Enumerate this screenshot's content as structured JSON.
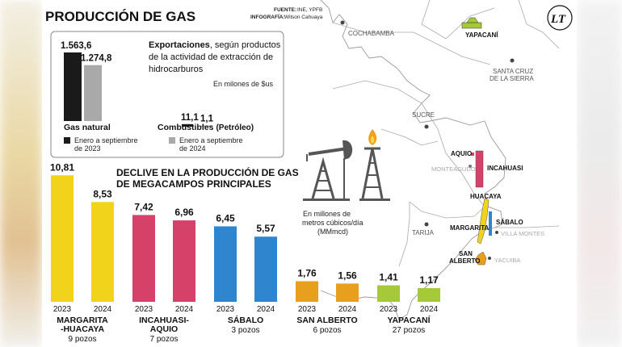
{
  "header": {
    "title": "PRODUCCIÓN DE GAS",
    "source_label": "FUENTE:",
    "source_value": "INE, YPFB",
    "credit_label": "INFOGRAFÍA:",
    "credit_value": "Wilson Cahuaya",
    "logo_text": "LT"
  },
  "exports": {
    "title_bold": "Exportaciones",
    "title_rest_1": ", según productos",
    "title_line_2": "de la actividad de extracción de",
    "title_line_3": "hidrocarburos",
    "unit": "En milones de $us",
    "legend": [
      {
        "label_1": "Enero a septiembre",
        "label_2": "de 2023",
        "color": "#1a1a1a"
      },
      {
        "label_1": "Enero a septiembre",
        "label_2": "de 2024",
        "color": "#a9a9a9"
      }
    ]
  },
  "decline": {
    "title_1": "DECLIVE EN LA PRODUCCIÓN DE GAS",
    "title_2": "DE MEGACAMPOS PRINCIPALES",
    "unit_1": "En millones de",
    "unit_2": "metros cúbicos/día",
    "unit_3": "(MMmcd)"
  },
  "chart_data": [
    {
      "type": "bar",
      "title": "Exportaciones, según productos de la actividad de extracción de hidrocarburos",
      "ylabel": "En milones de $us",
      "categories": [
        "Gas natural",
        "Combustibles"
      ],
      "category_notes": [
        "",
        "(Petróleo)"
      ],
      "series": [
        {
          "name": "Enero a septiembre de 2023",
          "values": [
            1563.6,
            11.1
          ],
          "labels": [
            "1.563,6",
            "11,1"
          ],
          "color": "#1a1a1a"
        },
        {
          "name": "Enero a septiembre de 2024",
          "values": [
            1274.8,
            1.1
          ],
          "labels": [
            "1.274,8",
            "1,1"
          ],
          "color": "#a9a9a9"
        }
      ]
    },
    {
      "type": "bar",
      "title": "DECLIVE EN LA PRODUCCIÓN DE GAS DE MEGACAMPOS PRINCIPALES",
      "ylabel": "En millones de metros cúbicos/día (MMmcd)",
      "x": [
        "2023",
        "2024"
      ],
      "fields": [
        {
          "name_1": "MARGARITA",
          "name_2": "-HUACAYA",
          "pozos": "9 pozos",
          "values": [
            10.81,
            8.53
          ],
          "labels": [
            "10,81",
            "8,53"
          ],
          "color": "#f1d31b"
        },
        {
          "name_1": "INCAHUASI-",
          "name_2": "AQUIO",
          "pozos": "7 pozos",
          "values": [
            7.42,
            6.96
          ],
          "labels": [
            "7,42",
            "6,96"
          ],
          "color": "#d6416a"
        },
        {
          "name_1": "SÁBALO",
          "name_2": "",
          "pozos": "3 pozos",
          "values": [
            6.45,
            5.57
          ],
          "labels": [
            "6,45",
            "5,57"
          ],
          "color": "#2f86cf"
        },
        {
          "name_1": "SAN ALBERTO",
          "name_2": "",
          "pozos": "6 pozos",
          "values": [
            1.76,
            1.56
          ],
          "labels": [
            "1,76",
            "1,56"
          ],
          "color": "#e79f1d"
        },
        {
          "name_1": "YAPACANÍ",
          "name_2": "",
          "pozos": "27 pozos",
          "values": [
            1.41,
            1.17
          ],
          "labels": [
            "1,41",
            "1,17"
          ],
          "color": "#a6c93a"
        }
      ]
    }
  ],
  "map": {
    "cities": [
      "COCHABAMBA",
      "SANTA CRUZ",
      "DE LA SIERRA",
      "SUCRE",
      "TARIJA"
    ],
    "faint_towns": [
      "MONTEAGUDO",
      "VILLA MONTES",
      "YACUIBA"
    ],
    "fields": [
      "YAPACANÍ",
      "AQUIO",
      "INCAHUASI",
      "HUACAYA",
      "MARGARITA",
      "SÁBALO",
      "SAN",
      "ALBERTO"
    ]
  }
}
